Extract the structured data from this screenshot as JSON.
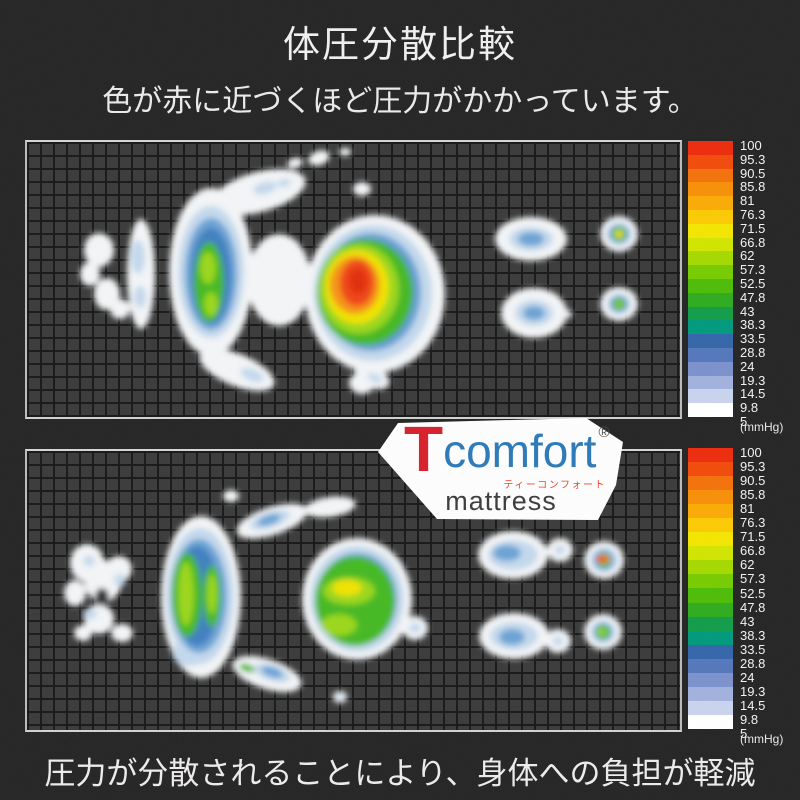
{
  "header": {
    "title": "体圧分散比較",
    "subtitle": "色が赤に近づくほど圧力がかかっています。"
  },
  "footer": {
    "caption": "圧力が分散されることにより、身体への負担が軽減"
  },
  "logo": {
    "t": "T",
    "comfort": "comfort",
    "registered": "®",
    "katakana": "ティーコンフォート",
    "mattress": "mattress",
    "t_color": "#d6202c",
    "comfort_color": "#2b79b7",
    "katakana_color": "#e8432c"
  },
  "chart_data": {
    "type": "heatmap",
    "title": "体圧分散比較",
    "unit": "mmHg",
    "legend_position": "right",
    "scale": {
      "labels": [
        "100",
        "95.3",
        "90.5",
        "85.8",
        "81",
        "76.3",
        "71.5",
        "66.8",
        "62",
        "57.3",
        "52.5",
        "47.8",
        "43",
        "38.3",
        "33.5",
        "28.8",
        "24",
        "19.3",
        "14.5",
        "9.8",
        "5"
      ],
      "colors": [
        "#ec2b0c",
        "#f14b0b",
        "#f3710b",
        "#f68f08",
        "#f9aa05",
        "#fbc903",
        "#f2e501",
        "#d0e400",
        "#a5d800",
        "#76cb00",
        "#4dbb07",
        "#2eab1e",
        "#119c49",
        "#00997c",
        "#3365a8",
        "#5477bb",
        "#7b91cc",
        "#a1b1dc",
        "#c9d3ed",
        "#ffffff"
      ],
      "unit_label": "(mmHg)"
    },
    "palette": {
      "w": "#f2f4f6",
      "d": "#343434",
      "p": "#c3d8ec",
      "b": "#6aa2d4",
      "B": "#3f7fc0",
      "g": "#44b822",
      "lg": "#9ad61c",
      "y": "#f0e202",
      "o": "#f59214",
      "r": "#ee4412",
      "R": "#e02f08"
    },
    "maps": [
      {
        "name": "standard-mattress-pressure-map",
        "note": "concentrated pressure: red/orange peak (~100 mmHg) at hip, green at shoulder",
        "blobs": [
          [
            72,
            108,
            15,
            17,
            "w",
            0
          ],
          [
            63,
            132,
            10,
            12,
            "w",
            0
          ],
          [
            80,
            152,
            13,
            16,
            "w",
            0
          ],
          [
            93,
            167,
            10,
            10,
            "w",
            0
          ],
          [
            114,
            132,
            14,
            55,
            "w",
            0
          ],
          [
            184,
            130,
            42,
            84,
            "w",
            0
          ],
          [
            232,
            50,
            48,
            20,
            "w",
            -15
          ],
          [
            292,
            16,
            11,
            7,
            "w",
            -20
          ],
          [
            318,
            10,
            6,
            4,
            "w",
            0
          ],
          [
            268,
            21,
            8,
            5,
            "w",
            -15
          ],
          [
            252,
            138,
            32,
            46,
            "w",
            0
          ],
          [
            348,
            152,
            70,
            79,
            "w",
            0
          ],
          [
            210,
            228,
            40,
            16,
            "w",
            22
          ],
          [
            345,
            234,
            19,
            11,
            "w",
            30
          ],
          [
            335,
            241,
            13,
            11,
            "w",
            0
          ],
          [
            335,
            47,
            9,
            7,
            "w",
            0
          ],
          [
            504,
            97,
            36,
            22,
            "w",
            0
          ],
          [
            507,
            171,
            33,
            25,
            "w",
            0
          ],
          [
            592,
            92,
            19,
            18,
            "w",
            0
          ],
          [
            592,
            162,
            19,
            17,
            "w",
            0
          ],
          [
            540,
            172,
            5,
            4,
            "w",
            0
          ],
          [
            111,
            115,
            7,
            17,
            "p",
            0
          ],
          [
            113,
            155,
            6,
            11,
            "p",
            0
          ],
          [
            184,
            130,
            33,
            66,
            "p",
            0
          ],
          [
            238,
            46,
            12,
            6,
            "p",
            -15
          ],
          [
            257,
            41,
            7,
            4,
            "p",
            -15
          ],
          [
            346,
            151,
            59,
            68,
            "p",
            0
          ],
          [
            504,
            97,
            22,
            12,
            "p",
            0
          ],
          [
            507,
            171,
            19,
            13,
            "p",
            0
          ],
          [
            592,
            92,
            13,
            12,
            "p",
            0
          ],
          [
            592,
            162,
            12,
            11,
            "p",
            0
          ],
          [
            225,
            233,
            12,
            6,
            "p",
            22
          ],
          [
            348,
            236,
            8,
            4,
            "p",
            30
          ],
          [
            184,
            132,
            26,
            56,
            "b",
            0
          ],
          [
            344,
            150,
            50,
            59,
            "b",
            0
          ],
          [
            504,
            97,
            13,
            7,
            "b",
            0
          ],
          [
            507,
            171,
            11,
            7,
            "b",
            0
          ],
          [
            592,
            92,
            10,
            9,
            "b",
            0
          ],
          [
            592,
            162,
            9,
            8,
            "b",
            0
          ],
          [
            184,
            134,
            20,
            48,
            "B",
            0
          ],
          [
            342,
            150,
            45,
            53,
            "B",
            0
          ],
          [
            182,
            140,
            15,
            40,
            "g",
            0
          ],
          [
            338,
            150,
            48,
            53,
            "g",
            0
          ],
          [
            592,
            92,
            7,
            7,
            "g",
            0
          ],
          [
            592,
            162,
            6,
            6,
            "g",
            0
          ],
          [
            181,
            126,
            8,
            16,
            "lg",
            0
          ],
          [
            184,
            162,
            7,
            12,
            "lg",
            0
          ],
          [
            332,
            147,
            40,
            45,
            "lg",
            0
          ],
          [
            330,
            145,
            32,
            37,
            "y",
            0
          ],
          [
            592,
            92,
            4,
            4,
            "y",
            0
          ],
          [
            592,
            162,
            3,
            3,
            "lg",
            0
          ],
          [
            328,
            143,
            25,
            29,
            "o",
            0
          ],
          [
            330,
            141,
            17,
            23,
            "r",
            0
          ],
          [
            331,
            139,
            9,
            13,
            "R",
            0
          ]
        ]
      },
      {
        "name": "tcomfort-mattress-pressure-map",
        "note": "dispersed pressure: green peaks (~52-62 mmHg) at shoulder and hip, small red dash at heel",
        "blobs": [
          [
            60,
            112,
            17,
            19,
            "w",
            0
          ],
          [
            48,
            142,
            11,
            13,
            "w",
            0
          ],
          [
            76,
            130,
            19,
            21,
            "w",
            0
          ],
          [
            92,
            118,
            13,
            13,
            "w",
            0
          ],
          [
            72,
            168,
            15,
            15,
            "w",
            0
          ],
          [
            95,
            182,
            11,
            9,
            "w",
            0
          ],
          [
            56,
            182,
            9,
            8,
            "w",
            0
          ],
          [
            174,
            146,
            40,
            81,
            "w",
            0
          ],
          [
            245,
            70,
            37,
            14,
            "w",
            -18
          ],
          [
            303,
            56,
            26,
            10,
            "w",
            -8
          ],
          [
            204,
            45,
            8,
            6,
            "w",
            0
          ],
          [
            330,
            148,
            55,
            61,
            "w",
            0
          ],
          [
            388,
            177,
            13,
            12,
            "w",
            0
          ],
          [
            240,
            223,
            36,
            15,
            "w",
            18
          ],
          [
            313,
            246,
            7,
            6,
            "w",
            0
          ],
          [
            486,
            104,
            35,
            24,
            "w",
            0
          ],
          [
            533,
            99,
            13,
            12,
            "w",
            0
          ],
          [
            487,
            185,
            35,
            23,
            "w",
            0
          ],
          [
            531,
            190,
            13,
            12,
            "w",
            0
          ],
          [
            577,
            109,
            20,
            19,
            "w",
            0
          ],
          [
            576,
            181,
            19,
            18,
            "w",
            0
          ],
          [
            75,
            146,
            7,
            9,
            "d",
            0
          ],
          [
            62,
            110,
            6,
            5,
            "p",
            0
          ],
          [
            93,
            129,
            6,
            6,
            "p",
            0
          ],
          [
            63,
            163,
            7,
            5,
            "p",
            0
          ],
          [
            173,
            145,
            34,
            68,
            "p",
            0
          ],
          [
            243,
            69,
            21,
            8,
            "p",
            -18
          ],
          [
            330,
            148,
            47,
            53,
            "p",
            0
          ],
          [
            486,
            104,
            25,
            15,
            "p",
            0
          ],
          [
            487,
            185,
            24,
            14,
            "p",
            0
          ],
          [
            577,
            109,
            14,
            13,
            "p",
            0
          ],
          [
            576,
            181,
            13,
            12,
            "p",
            0
          ],
          [
            533,
            99,
            5,
            5,
            "p",
            0
          ],
          [
            531,
            190,
            5,
            5,
            "p",
            0
          ],
          [
            245,
            222,
            19,
            8,
            "p",
            18
          ],
          [
            313,
            246,
            3,
            3,
            "p",
            0
          ],
          [
            388,
            177,
            6,
            5,
            "p",
            0
          ],
          [
            163,
            202,
            18,
            13,
            "p",
            0
          ],
          [
            172,
            145,
            28,
            57,
            "b",
            0
          ],
          [
            330,
            148,
            40,
            46,
            "b",
            0
          ],
          [
            480,
            102,
            14,
            8,
            "b",
            0
          ],
          [
            485,
            186,
            13,
            8,
            "b",
            0
          ],
          [
            242,
            69,
            12,
            5,
            "b",
            -18
          ],
          [
            245,
            221,
            11,
            5,
            "b",
            18
          ],
          [
            577,
            109,
            10,
            10,
            "b",
            0
          ],
          [
            576,
            181,
            9,
            9,
            "b",
            0
          ],
          [
            170,
            145,
            22,
            50,
            "B",
            0
          ],
          [
            328,
            147,
            36,
            42,
            "B",
            0
          ],
          [
            160,
            144,
            15,
            42,
            "g",
            0
          ],
          [
            185,
            145,
            9,
            31,
            "g",
            0
          ],
          [
            328,
            150,
            40,
            45,
            "g",
            0
          ],
          [
            577,
            109,
            7,
            7,
            "g",
            0
          ],
          [
            576,
            181,
            7,
            7,
            "g",
            0
          ],
          [
            220,
            217,
            8,
            4,
            "g",
            18
          ],
          [
            159,
            143,
            8,
            32,
            "lg",
            0
          ],
          [
            185,
            143,
            5,
            20,
            "lg",
            0
          ],
          [
            322,
            140,
            26,
            14,
            "lg",
            0
          ],
          [
            312,
            174,
            18,
            11,
            "lg",
            0
          ],
          [
            575,
            181,
            4,
            4,
            "lg",
            0
          ],
          [
            320,
            137,
            15,
            8,
            "y",
            0
          ],
          [
            577,
            108,
            5,
            4,
            "y",
            0
          ],
          [
            576,
            108,
            7,
            4,
            "o",
            0
          ],
          [
            575,
            108,
            6,
            3,
            "r",
            0
          ]
        ]
      }
    ]
  }
}
